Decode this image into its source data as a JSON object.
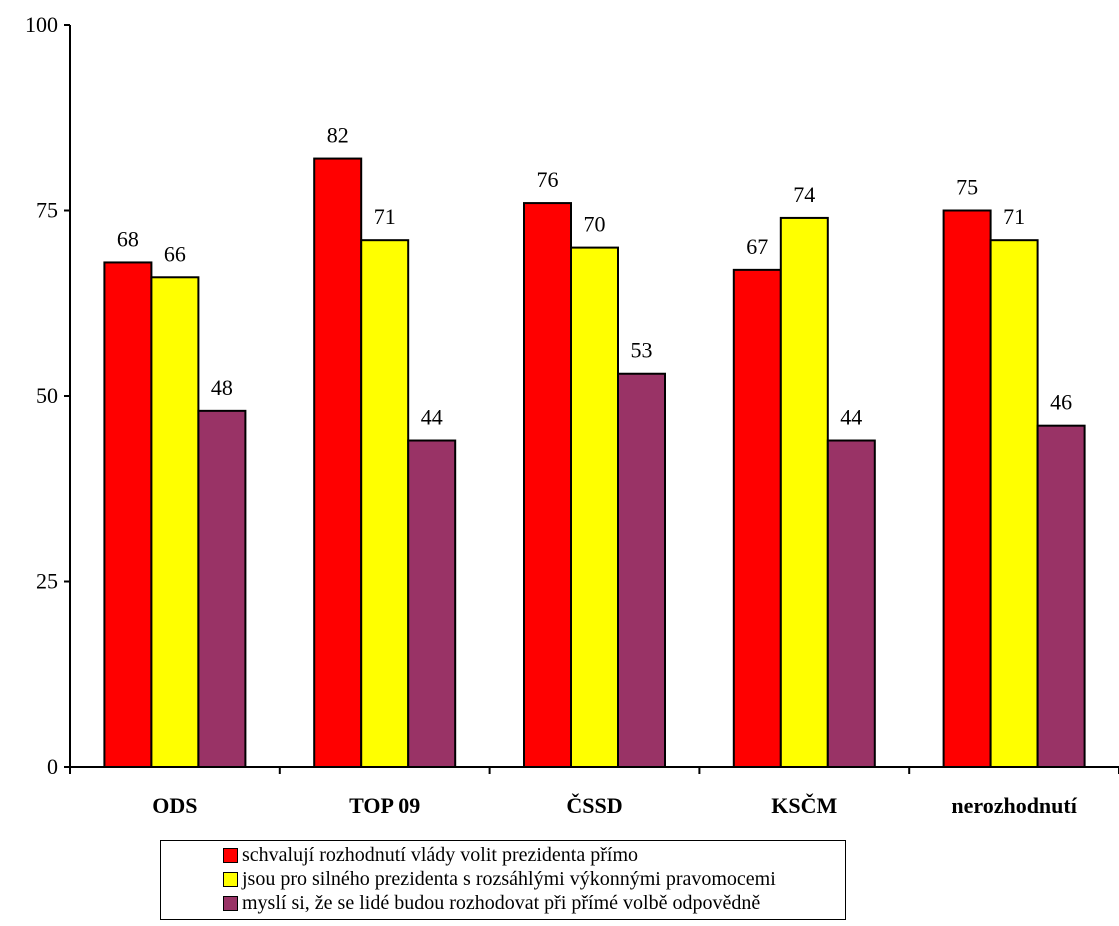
{
  "chart_data": {
    "type": "bar",
    "categories": [
      "ODS",
      "TOP 09",
      "ČSSD",
      "KSČM",
      "nerozhodnutí"
    ],
    "series": [
      {
        "name": "schvalují rozhodnutí vlády volit prezidenta přímo",
        "color": "#ff0000",
        "values": [
          68,
          82,
          76,
          67,
          75
        ]
      },
      {
        "name": "jsou pro silného prezidenta s rozsáhlými výkonnými pravomocemi",
        "color": "#ffff00",
        "values": [
          66,
          71,
          70,
          74,
          71
        ]
      },
      {
        "name": "myslí si, že se lidé budou rozhodovat při přímé volbě odpovědně",
        "color": "#993366",
        "values": [
          48,
          44,
          53,
          44,
          46
        ]
      }
    ],
    "ylim": [
      0,
      100
    ],
    "yticks": [
      0,
      25,
      50,
      75,
      100
    ],
    "grid": false,
    "legend_position": "bottom"
  }
}
